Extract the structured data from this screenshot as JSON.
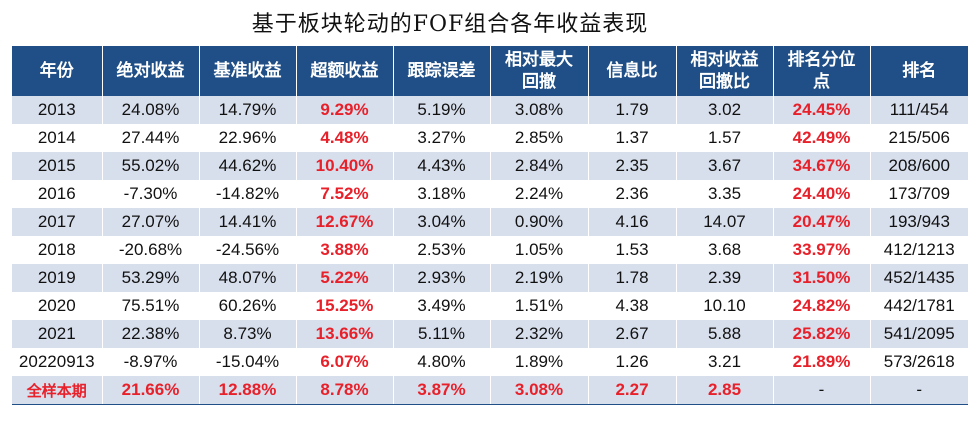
{
  "title": "基于板块轮动的FOF组合各年收益表现",
  "headers": [
    "年份",
    "绝对收益",
    "基准收益",
    "超额收益",
    "跟踪误差",
    "相对最大回撤",
    "信息比",
    "相对收益回撤比",
    "排名分位点",
    "排名"
  ],
  "header_lines": [
    [
      "年份"
    ],
    [
      "绝对收益"
    ],
    [
      "基准收益"
    ],
    [
      "超额收益"
    ],
    [
      "跟踪误差"
    ],
    [
      "相对最大",
      "回撤"
    ],
    [
      "信息比"
    ],
    [
      "相对收益",
      "回撤比"
    ],
    [
      "排名分位",
      "点"
    ],
    [
      "排名"
    ]
  ],
  "rows": [
    [
      "2013",
      "24.08%",
      "14.79%",
      "9.29%",
      "5.19%",
      "3.08%",
      "1.79",
      "3.02",
      "24.45%",
      "111/454"
    ],
    [
      "2014",
      "27.44%",
      "22.96%",
      "4.48%",
      "3.27%",
      "2.85%",
      "1.37",
      "1.57",
      "42.49%",
      "215/506"
    ],
    [
      "2015",
      "55.02%",
      "44.62%",
      "10.40%",
      "4.43%",
      "2.84%",
      "2.35",
      "3.67",
      "34.67%",
      "208/600"
    ],
    [
      "2016",
      "-7.30%",
      "-14.82%",
      "7.52%",
      "3.18%",
      "2.24%",
      "2.36",
      "3.35",
      "24.40%",
      "173/709"
    ],
    [
      "2017",
      "27.07%",
      "14.41%",
      "12.67%",
      "3.04%",
      "0.90%",
      "4.16",
      "14.07",
      "20.47%",
      "193/943"
    ],
    [
      "2018",
      "-20.68%",
      "-24.56%",
      "3.88%",
      "2.53%",
      "1.05%",
      "1.53",
      "3.68",
      "33.97%",
      "412/1213"
    ],
    [
      "2019",
      "53.29%",
      "48.07%",
      "5.22%",
      "2.93%",
      "2.19%",
      "1.78",
      "2.39",
      "31.50%",
      "452/1435"
    ],
    [
      "2020",
      "75.51%",
      "60.26%",
      "15.25%",
      "3.49%",
      "1.51%",
      "4.38",
      "10.10",
      "24.82%",
      "442/1781"
    ],
    [
      "2021",
      "22.38%",
      "8.73%",
      "13.66%",
      "5.11%",
      "2.32%",
      "2.67",
      "5.88",
      "25.82%",
      "541/2095"
    ],
    [
      "20220913",
      "-8.97%",
      "-15.04%",
      "6.07%",
      "4.80%",
      "1.89%",
      "1.26",
      "3.21",
      "21.89%",
      "573/2618"
    ]
  ],
  "summary": [
    "全样本期",
    "21.66%",
    "12.88%",
    "8.78%",
    "3.87%",
    "3.08%",
    "2.27",
    "2.85",
    "-",
    "-"
  ],
  "colors": {
    "header_bg": "#1f4f86",
    "band_bg": "#d7deec",
    "highlight": "#e8202a"
  }
}
